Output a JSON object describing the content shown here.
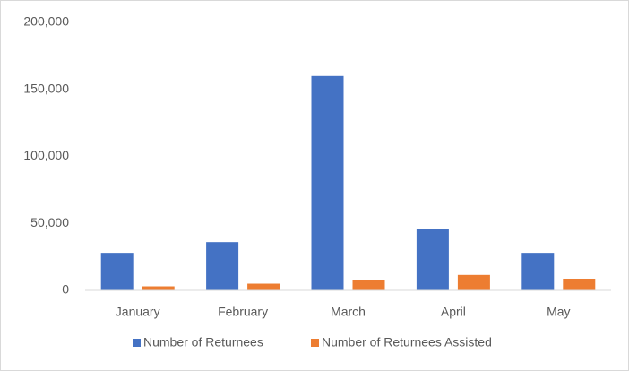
{
  "chart_data": {
    "type": "bar",
    "categories": [
      "January",
      "February",
      "March",
      "April",
      "May"
    ],
    "series": [
      {
        "name": "Number of Returnees",
        "color": "#4472c4",
        "values": [
          28000,
          36000,
          160000,
          46000,
          28000
        ]
      },
      {
        "name": "Number of Returnees Assisted",
        "color": "#ed7d31",
        "values": [
          3000,
          5000,
          8000,
          11500,
          8700
        ]
      }
    ],
    "ylim": [
      0,
      200000
    ],
    "yticks": [
      0,
      {
        "value": 50000,
        "label": "50,000"
      },
      {
        "value": 100000,
        "label": "100,000"
      },
      {
        "value": 150000,
        "label": "150,000"
      },
      {
        "value": 200000,
        "label": "200,000"
      }
    ],
    "grid": false,
    "legend": "bottom"
  }
}
